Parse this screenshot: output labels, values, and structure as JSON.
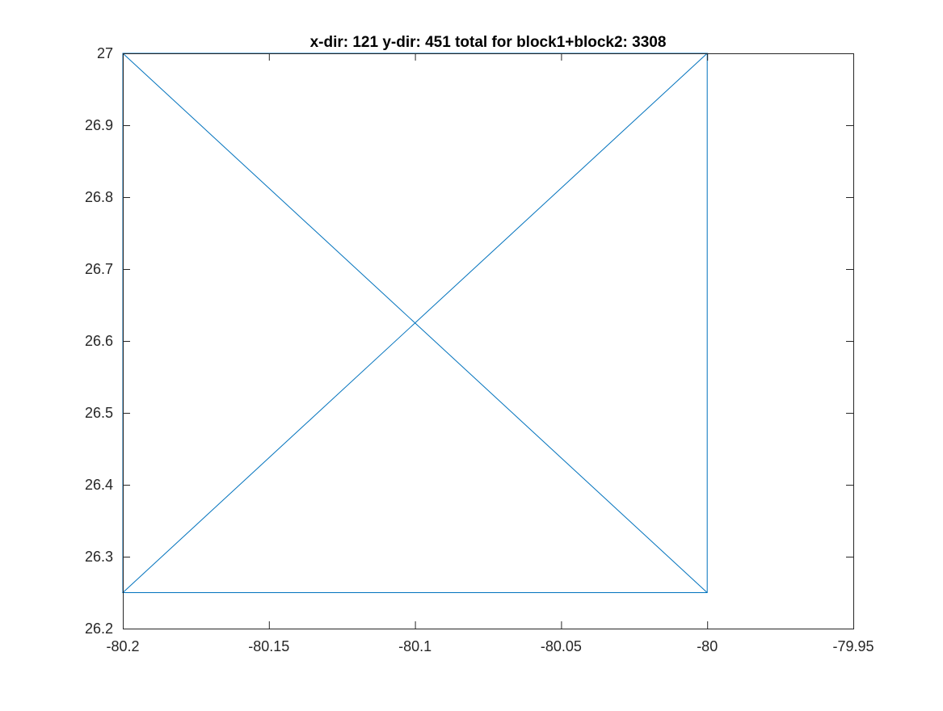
{
  "chart_data": {
    "type": "line",
    "title": "x-dir: 121 y-dir: 451 total for block1+block2: 3308",
    "xlabel": "",
    "ylabel": "",
    "xlim": [
      -80.2,
      -79.95
    ],
    "ylim": [
      26.2,
      27
    ],
    "x_ticks": [
      -80.2,
      -80.15,
      -80.1,
      -80.05,
      -80,
      -79.95
    ],
    "x_tick_labels": [
      "-80.2",
      "-80.15",
      "-80.1",
      "-80.05",
      "-80",
      "-79.95"
    ],
    "y_ticks": [
      26.2,
      26.3,
      26.4,
      26.5,
      26.6,
      26.7,
      26.8,
      26.9,
      27
    ],
    "y_tick_labels": [
      "26.2",
      "26.3",
      "26.4",
      "26.5",
      "26.6",
      "26.7",
      "26.8",
      "26.9",
      "27"
    ],
    "grid": false,
    "box": true,
    "series": [
      {
        "color": "#0072bd",
        "x": [
          -80.2,
          -80.2,
          -80.0,
          -80.2,
          -80.0,
          -80.0,
          -80.2
        ],
        "y": [
          26.25,
          27.0,
          27.0,
          26.25,
          26.25,
          27.0,
          27.0
        ]
      },
      {
        "color": "#0072bd",
        "x": [
          -80.2,
          -80.0
        ],
        "y": [
          27.0,
          26.25
        ]
      }
    ]
  }
}
